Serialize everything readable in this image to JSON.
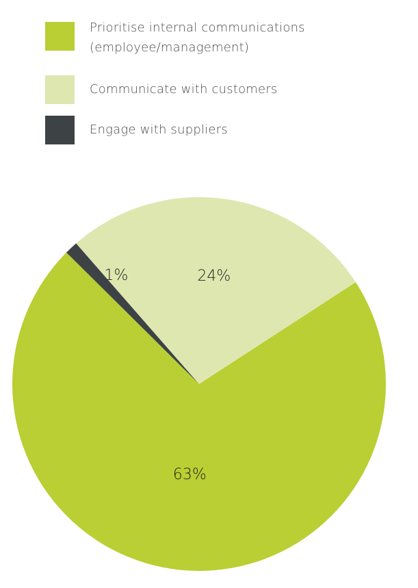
{
  "chart_data": {
    "type": "pie",
    "title": "",
    "legend_placement": "top-left",
    "slices": [
      {
        "name": "Prioritise internal communications\n(employee/management)",
        "value": 63,
        "label": "63%",
        "color": "#b9cf33"
      },
      {
        "name": "Communicate with  customers",
        "value": 24,
        "label": "24%",
        "color": "#dfe7b0"
      },
      {
        "name": "Engage with suppliers",
        "value": 1,
        "label": "1%",
        "color": "#3d4345"
      }
    ]
  }
}
